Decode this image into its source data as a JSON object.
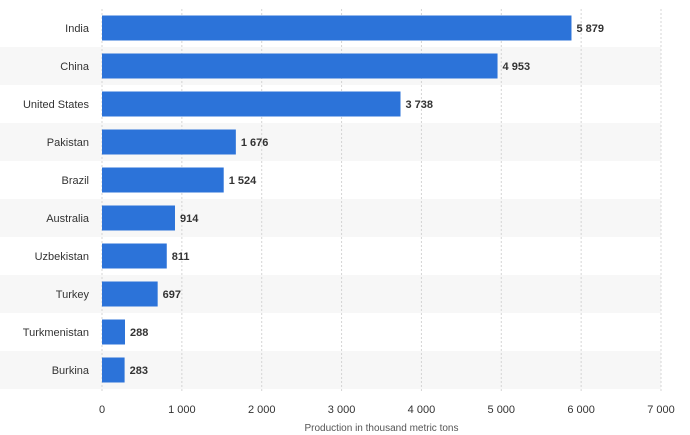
{
  "chart_data": {
    "type": "bar",
    "orientation": "horizontal",
    "categories": [
      "India",
      "China",
      "United States",
      "Pakistan",
      "Brazil",
      "Australia",
      "Uzbekistan",
      "Turkey",
      "Turkmenistan",
      "Burkina"
    ],
    "values": [
      5879,
      4953,
      3738,
      1676,
      1524,
      914,
      811,
      697,
      288,
      283
    ],
    "value_labels": [
      "5 879",
      "4 953",
      "3 738",
      "1 676",
      "1 524",
      "914",
      "811",
      "697",
      "288",
      "283"
    ],
    "xlabel": "Production in thousand metric tons",
    "ylabel": "",
    "xlim": [
      0,
      7000
    ],
    "ticks": [
      0,
      1000,
      2000,
      3000,
      4000,
      5000,
      6000,
      7000
    ],
    "tick_labels": [
      "0",
      "1 000",
      "2 000",
      "3 000",
      "4 000",
      "5 000",
      "6 000",
      "7 000"
    ],
    "grid": "vertical dashed",
    "legend": "none",
    "colors": {
      "bar": "#2c73d9",
      "band_alt": "#f7f7f7",
      "grid": "#d4d4d4",
      "text": "#333333"
    }
  }
}
